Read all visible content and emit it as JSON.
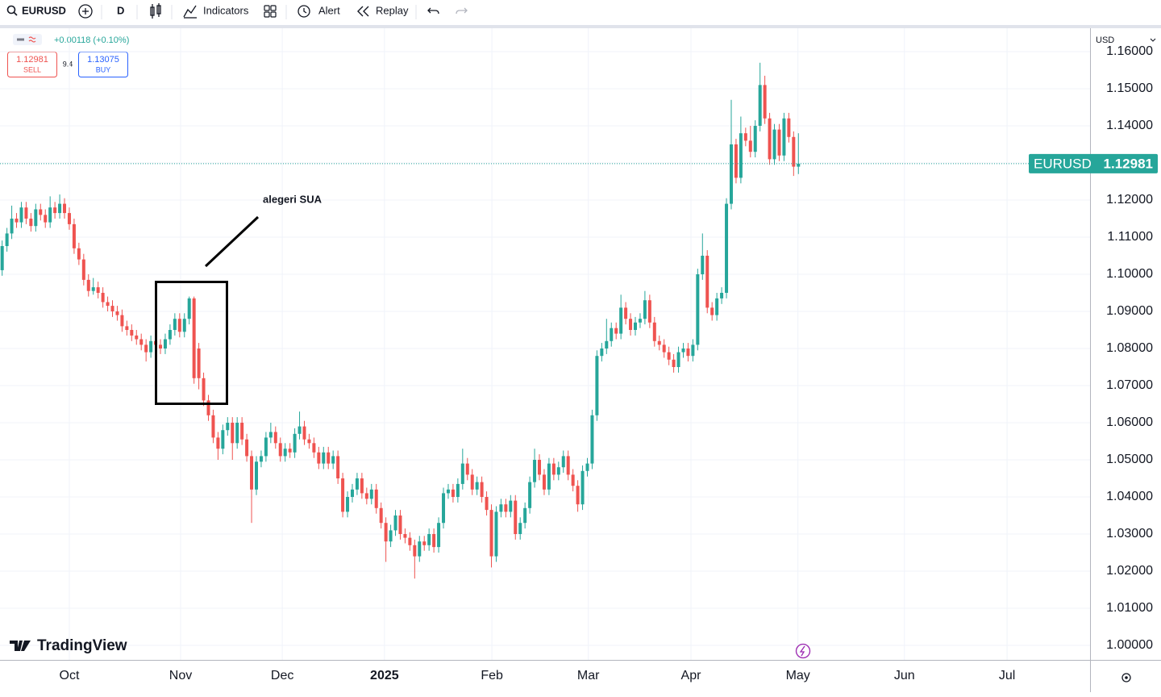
{
  "toolbar": {
    "symbol": "EURUSD",
    "interval": "D",
    "indicators": "Indicators",
    "alert": "Alert",
    "replay": "Replay"
  },
  "quote": {
    "change": "+0.00118 (+0.10%)",
    "sell": 1.12981,
    "sell_label": "SELL",
    "spread": 9.4,
    "buy": 1.13075,
    "buy_label": "BUY"
  },
  "currency": "USD",
  "brand": "TradingView",
  "chart_data": {
    "type": "candlestick",
    "annotations": [
      "alegeri SUA"
    ],
    "up_color": "#26a69a",
    "down_color": "#ef5350",
    "grid": true,
    "categories": [
      null,
      null,
      null,
      null,
      null,
      null,
      null,
      null,
      null,
      null,
      null,
      null,
      null,
      null,
      null,
      null,
      null,
      null,
      null,
      null,
      null,
      null,
      null,
      null,
      null,
      null,
      null,
      null,
      null,
      null,
      null,
      null,
      null,
      null,
      null,
      null,
      null,
      null,
      null,
      null,
      null,
      null,
      null,
      null,
      null,
      null,
      null,
      null,
      null,
      null,
      null,
      null,
      null,
      null,
      null,
      null,
      null,
      null,
      null,
      null,
      null,
      null,
      null,
      null,
      null,
      null,
      null,
      null,
      null,
      null,
      null,
      null,
      null,
      null,
      null,
      null,
      null,
      null,
      null,
      null,
      null,
      null,
      null,
      null,
      null,
      null,
      null,
      null,
      null,
      null,
      null,
      null,
      null,
      null,
      null,
      null,
      null,
      null,
      null,
      null,
      null,
      null,
      null,
      null,
      null,
      null,
      null,
      null,
      null,
      null,
      null,
      null,
      null,
      null,
      null,
      null,
      null,
      null,
      null,
      null,
      null,
      null,
      null,
      null,
      null,
      null,
      null,
      null,
      null,
      null,
      null,
      null,
      null,
      null,
      null,
      null,
      null,
      null,
      null,
      null,
      null,
      null,
      null,
      null,
      null,
      null,
      null,
      null,
      null,
      null,
      null,
      null,
      null,
      null,
      null,
      null,
      null,
      null,
      null,
      null,
      null,
      null,
      null,
      null,
      null,
      null,
      null
    ],
    "series": [
      {
        "name": "EURUSD",
        "open": [
          1.1011,
          1.1076,
          1.111,
          1.115,
          1.114,
          1.118,
          1.115,
          1.113,
          1.1175,
          1.116,
          1.114,
          1.118,
          1.1165,
          1.119,
          1.1165,
          1.1135,
          1.107,
          1.104,
          1.0985,
          1.0955,
          1.0965,
          1.095,
          1.0925,
          1.0915,
          1.09,
          1.089,
          1.086,
          1.085,
          1.0835,
          1.0825,
          1.081,
          1.079,
          1.082,
          1.081,
          1.08,
          1.0825,
          1.085,
          1.088,
          1.0845,
          1.088,
          1.0935,
          1.08,
          1.072,
          1.066,
          1.062,
          1.056,
          1.053,
          1.058,
          1.06,
          1.0545,
          1.06,
          1.0555,
          1.051,
          1.042,
          1.0495,
          1.051,
          1.056,
          1.0575,
          1.0545,
          1.051,
          1.053,
          1.052,
          1.057,
          1.059,
          1.0555,
          1.0545,
          1.052,
          1.049,
          1.052,
          1.049,
          1.051,
          1.045,
          1.036,
          1.04,
          1.042,
          1.045,
          1.041,
          1.0395,
          1.042,
          1.037,
          1.033,
          1.028,
          1.031,
          1.035,
          1.03,
          1.029,
          1.027,
          1.024,
          1.028,
          1.027,
          1.03,
          1.0265,
          1.033,
          1.041,
          1.042,
          1.04,
          1.0435,
          1.049,
          1.046,
          1.042,
          1.044,
          1.04,
          1.0365,
          1.024,
          1.036,
          1.038,
          1.036,
          1.039,
          1.03,
          1.033,
          1.037,
          1.044,
          1.05,
          1.046,
          1.042,
          1.049,
          1.046,
          1.048,
          1.051,
          1.046,
          1.043,
          1.038,
          1.047,
          1.049,
          1.062,
          1.078,
          1.08,
          1.082,
          1.0855,
          1.084,
          1.091,
          1.088,
          1.085,
          1.087,
          1.088,
          1.093,
          1.087,
          1.082,
          1.081,
          1.079,
          1.077,
          1.075,
          1.079,
          1.08,
          1.078,
          1.081,
          1.1,
          1.105,
          1.091,
          1.089,
          1.0935,
          1.095,
          1.119,
          1.135,
          1.126,
          1.138,
          1.136,
          1.133,
          1.14,
          1.151,
          1.142,
          1.131,
          1.139,
          1.132,
          1.142,
          1.137,
          1.129
        ],
        "high": [
          1.1091,
          1.1125,
          1.1185,
          1.1165,
          1.1195,
          1.1195,
          1.1165,
          1.119,
          1.119,
          1.1175,
          1.121,
          1.1195,
          1.1215,
          1.1205,
          1.118,
          1.115,
          1.1085,
          1.1055,
          1.1,
          1.099,
          1.098,
          1.0965,
          1.094,
          1.093,
          1.0915,
          1.0905,
          1.0875,
          1.0865,
          1.085,
          1.084,
          1.0825,
          1.0835,
          1.0835,
          1.0825,
          1.084,
          1.0865,
          1.0895,
          1.0895,
          1.0895,
          1.094,
          1.094,
          1.0815,
          1.0735,
          1.0675,
          1.0635,
          1.0575,
          1.0595,
          1.0615,
          1.0615,
          1.0615,
          1.0615,
          1.057,
          1.0525,
          1.051,
          1.0525,
          1.0575,
          1.06,
          1.059,
          1.056,
          1.0545,
          1.0545,
          1.0585,
          1.063,
          1.0605,
          1.057,
          1.056,
          1.0535,
          1.0535,
          1.0535,
          1.0525,
          1.0525,
          1.0465,
          1.0415,
          1.0435,
          1.0465,
          1.0465,
          1.0425,
          1.0435,
          1.0435,
          1.0385,
          1.0345,
          1.0325,
          1.0365,
          1.0365,
          1.0315,
          1.0305,
          1.0285,
          1.0295,
          1.0295,
          1.0315,
          1.0315,
          1.0345,
          1.0425,
          1.0435,
          1.0435,
          1.045,
          1.053,
          1.0505,
          1.0475,
          1.0455,
          1.0455,
          1.0415,
          1.038,
          1.0375,
          1.0395,
          1.0395,
          1.0405,
          1.0405,
          1.0345,
          1.0385,
          1.0455,
          1.053,
          1.0515,
          1.0475,
          1.0505,
          1.0505,
          1.0495,
          1.0525,
          1.0525,
          1.0475,
          1.0445,
          1.0485,
          1.0505,
          1.0635,
          1.0795,
          1.0815,
          1.088,
          1.087,
          1.087,
          1.0945,
          1.0925,
          1.0895,
          1.0885,
          1.0895,
          1.0955,
          1.0945,
          1.0885,
          1.0835,
          1.0825,
          1.0805,
          1.0785,
          1.0805,
          1.0815,
          1.0815,
          1.0825,
          1.1015,
          1.111,
          1.1065,
          1.0925,
          1.095,
          1.0965,
          1.1205,
          1.147,
          1.1365,
          1.1425,
          1.1395,
          1.14,
          1.1415,
          1.157,
          1.1535,
          1.1435,
          1.1405,
          1.1405,
          1.1435,
          1.1435,
          1.1385,
          1.138
        ],
        "low": [
          1.0996,
          1.1061,
          1.1095,
          1.1125,
          1.1125,
          1.1135,
          1.1115,
          1.1115,
          1.1145,
          1.1125,
          1.1125,
          1.115,
          1.115,
          1.115,
          1.112,
          1.1055,
          1.1025,
          1.097,
          1.094,
          1.0945,
          1.0935,
          1.091,
          1.09,
          1.0885,
          1.0875,
          1.0845,
          1.0835,
          1.082,
          1.081,
          1.0795,
          1.0765,
          1.0775,
          1.0795,
          1.0785,
          1.0785,
          1.081,
          1.0835,
          1.083,
          1.083,
          1.0865,
          1.0705,
          1.069,
          1.0645,
          1.0605,
          1.0545,
          1.05,
          1.0515,
          1.0565,
          1.05,
          1.053,
          1.054,
          1.0495,
          1.033,
          1.0405,
          1.048,
          1.0495,
          1.0545,
          1.053,
          1.0495,
          1.0495,
          1.0505,
          1.0505,
          1.0555,
          1.054,
          1.053,
          1.0505,
          1.0475,
          1.0475,
          1.0475,
          1.0475,
          1.0435,
          1.0345,
          1.0345,
          1.0385,
          1.0405,
          1.0395,
          1.038,
          1.038,
          1.0355,
          1.0315,
          1.0225,
          1.0265,
          1.0295,
          1.0285,
          1.0275,
          1.0255,
          1.018,
          1.0225,
          1.0255,
          1.0255,
          1.025,
          1.025,
          1.0315,
          1.0395,
          1.0385,
          1.0385,
          1.042,
          1.0445,
          1.0405,
          1.0405,
          1.0385,
          1.035,
          1.021,
          1.0225,
          1.0345,
          1.0345,
          1.0345,
          1.0285,
          1.0285,
          1.0315,
          1.0355,
          1.0425,
          1.0445,
          1.0405,
          1.0405,
          1.0445,
          1.0445,
          1.0465,
          1.0445,
          1.0415,
          1.036,
          1.0365,
          1.0455,
          1.0475,
          1.0605,
          1.0765,
          1.0785,
          1.0805,
          1.0825,
          1.0825,
          1.0865,
          1.0835,
          1.0835,
          1.0855,
          1.0865,
          1.0855,
          1.0805,
          1.0795,
          1.0775,
          1.0755,
          1.0735,
          1.0735,
          1.0775,
          1.0765,
          1.0765,
          1.0795,
          1.0985,
          1.0895,
          1.0875,
          1.0875,
          1.092,
          1.0935,
          1.1175,
          1.1245,
          1.1245,
          1.1345,
          1.1315,
          1.1315,
          1.1385,
          1.1405,
          1.1295,
          1.1295,
          1.1305,
          1.1305,
          1.1355,
          1.1265,
          1.127
        ],
        "close": [
          1.1076,
          1.111,
          1.115,
          1.114,
          1.118,
          1.115,
          1.113,
          1.1175,
          1.116,
          1.114,
          1.118,
          1.1165,
          1.119,
          1.1165,
          1.1135,
          1.107,
          1.104,
          1.0985,
          1.0955,
          1.0965,
          1.095,
          1.0925,
          1.0915,
          1.09,
          1.089,
          1.086,
          1.085,
          1.0835,
          1.0825,
          1.081,
          1.079,
          1.082,
          1.081,
          1.08,
          1.0825,
          1.085,
          1.088,
          1.0845,
          1.088,
          1.0935,
          1.072,
          1.072,
          1.066,
          1.062,
          1.056,
          1.053,
          1.058,
          1.06,
          1.0545,
          1.06,
          1.0555,
          1.051,
          1.042,
          1.0495,
          1.051,
          1.056,
          1.0575,
          1.0545,
          1.051,
          1.053,
          1.052,
          1.057,
          1.059,
          1.0555,
          1.0545,
          1.052,
          1.049,
          1.052,
          1.049,
          1.051,
          1.045,
          1.036,
          1.04,
          1.042,
          1.045,
          1.041,
          1.0395,
          1.042,
          1.037,
          1.033,
          1.028,
          1.031,
          1.035,
          1.03,
          1.029,
          1.027,
          1.024,
          1.028,
          1.027,
          1.03,
          1.0265,
          1.033,
          1.041,
          1.042,
          1.04,
          1.0435,
          1.049,
          1.046,
          1.042,
          1.044,
          1.04,
          1.0365,
          1.024,
          1.036,
          1.038,
          1.036,
          1.039,
          1.03,
          1.033,
          1.037,
          1.044,
          1.05,
          1.046,
          1.042,
          1.049,
          1.046,
          1.048,
          1.051,
          1.046,
          1.043,
          1.038,
          1.047,
          1.049,
          1.062,
          1.078,
          1.08,
          1.082,
          1.0855,
          1.084,
          1.091,
          1.088,
          1.085,
          1.087,
          1.088,
          1.093,
          1.087,
          1.082,
          1.081,
          1.079,
          1.077,
          1.075,
          1.079,
          1.08,
          1.078,
          1.081,
          1.1,
          1.105,
          1.091,
          1.089,
          1.0935,
          1.095,
          1.119,
          1.135,
          1.126,
          1.138,
          1.136,
          1.133,
          1.14,
          1.151,
          1.142,
          1.131,
          1.139,
          1.132,
          1.142,
          1.137,
          1.129,
          1.12981
        ]
      }
    ],
    "xlim": [
      -0.45,
      226.8
    ],
    "xticks": [
      {
        "value": 14,
        "label": "Oct"
      },
      {
        "value": 37.2,
        "label": "Nov"
      },
      {
        "value": 58.4,
        "label": "Dec"
      },
      {
        "value": 79.7,
        "label": "2025"
      },
      {
        "value": 102.1,
        "label": "Feb"
      },
      {
        "value": 122.2,
        "label": "Mar"
      },
      {
        "value": 143.6,
        "label": "Apr"
      },
      {
        "value": 165.9,
        "label": "May"
      },
      {
        "value": 188.1,
        "label": "Jun"
      },
      {
        "value": 209.5,
        "label": "Jul"
      }
    ],
    "ylim": [
      0.99609,
      1.1663
    ],
    "yticks": [
      {
        "value": 1.0,
        "label": "1.00000"
      },
      {
        "value": 1.01,
        "label": "1.01000"
      },
      {
        "value": 1.02,
        "label": "1.02000"
      },
      {
        "value": 1.03,
        "label": "1.03000"
      },
      {
        "value": 1.04,
        "label": "1.04000"
      },
      {
        "value": 1.05,
        "label": "1.05000"
      },
      {
        "value": 1.06,
        "label": "1.06000"
      },
      {
        "value": 1.07,
        "label": "1.07000"
      },
      {
        "value": 1.08,
        "label": "1.08000"
      },
      {
        "value": 1.09,
        "label": "1.09000"
      },
      {
        "value": 1.1,
        "label": "1.10000"
      },
      {
        "value": 1.11,
        "label": "1.11000"
      },
      {
        "value": 1.12,
        "label": "1.12000"
      },
      {
        "value": 1.13,
        "label": "1.13000"
      },
      {
        "value": 1.14,
        "label": "1.14000"
      },
      {
        "value": 1.15,
        "label": "1.15000"
      },
      {
        "value": 1.16,
        "label": "1.16000"
      }
    ]
  }
}
